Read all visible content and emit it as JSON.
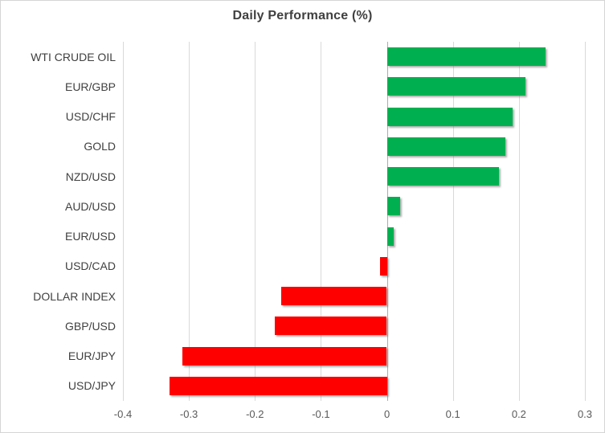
{
  "chart_data": {
    "type": "bar",
    "orientation": "horizontal",
    "title": "Daily Performance (%)",
    "categories": [
      "WTI CRUDE OIL",
      "EUR/GBP",
      "USD/CHF",
      "GOLD",
      "NZD/USD",
      "AUD/USD",
      "EUR/USD",
      "USD/CAD",
      "DOLLAR INDEX",
      "GBP/USD",
      "EUR/JPY",
      "USD/JPY"
    ],
    "values": [
      0.24,
      0.21,
      0.19,
      0.18,
      0.17,
      0.02,
      0.01,
      -0.01,
      -0.16,
      -0.17,
      -0.31,
      -0.33
    ],
    "xlabel": "",
    "ylabel": "",
    "xlim": [
      -0.4,
      0.3
    ],
    "xticks": [
      -0.4,
      -0.3,
      -0.2,
      -0.1,
      0,
      0.1,
      0.2,
      0.3
    ],
    "xtick_labels": [
      "-0.4",
      "-0.3",
      "-0.2",
      "-0.1",
      "0",
      "0.1",
      "0.2",
      "0.3"
    ],
    "grid": true,
    "legend": "none",
    "colors": {
      "positive_bar": "#00B050",
      "negative_bar": "#FF0000",
      "gridline": "#D9D9D9",
      "zero_line": "#ACACAC",
      "title_text": "#3F3F3F",
      "category_text": "#404040",
      "tick_text": "#595959",
      "border": "#D5D5D5",
      "background": "#FFFFFF"
    }
  }
}
